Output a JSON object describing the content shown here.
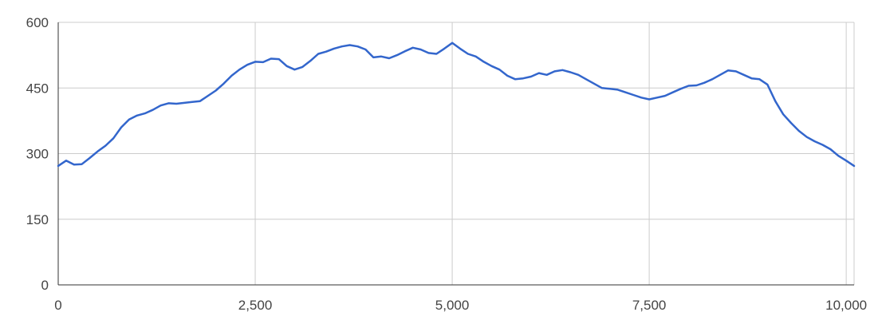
{
  "chart_data": {
    "type": "line",
    "title": "",
    "xlabel": "",
    "ylabel": "",
    "xlim": [
      0,
      10100
    ],
    "ylim": [
      0,
      600
    ],
    "x_ticks": [
      0,
      2500,
      5000,
      7500,
      10000
    ],
    "x_tick_labels": [
      "0",
      "2,500",
      "5,000",
      "7,500",
      "10,000"
    ],
    "y_ticks": [
      0,
      150,
      300,
      450,
      600
    ],
    "y_tick_labels": [
      "0",
      "150",
      "300",
      "450",
      "600"
    ],
    "grid": true,
    "legend": "none",
    "colors": {
      "line": "#3366cc",
      "grid": "#cccccc",
      "axis": "#333333",
      "text": "#444444"
    },
    "series": [
      {
        "x": [
          0,
          100,
          200,
          300,
          400,
          500,
          600,
          700,
          800,
          900,
          1000,
          1100,
          1200,
          1300,
          1400,
          1500,
          1600,
          1700,
          1800,
          1900,
          2000,
          2100,
          2200,
          2300,
          2400,
          2500,
          2600,
          2700,
          2800,
          2900,
          3000,
          3100,
          3200,
          3300,
          3400,
          3500,
          3600,
          3700,
          3800,
          3900,
          4000,
          4100,
          4200,
          4300,
          4400,
          4500,
          4600,
          4700,
          4800,
          4900,
          5000,
          5100,
          5200,
          5300,
          5400,
          5500,
          5600,
          5700,
          5800,
          5900,
          6000,
          6100,
          6200,
          6300,
          6400,
          6500,
          6600,
          6700,
          6800,
          6900,
          7000,
          7100,
          7200,
          7300,
          7400,
          7500,
          7600,
          7700,
          7800,
          7900,
          8000,
          8100,
          8200,
          8300,
          8400,
          8500,
          8600,
          8700,
          8800,
          8900,
          9000,
          9100,
          9200,
          9300,
          9400,
          9500,
          9600,
          9700,
          9800,
          9900,
          10000,
          10100
        ],
        "values": [
          272,
          284,
          275,
          276,
          290,
          305,
          318,
          335,
          360,
          378,
          387,
          392,
          400,
          410,
          415,
          414,
          416,
          418,
          420,
          432,
          444,
          460,
          478,
          492,
          503,
          510,
          509,
          517,
          516,
          500,
          492,
          498,
          512,
          528,
          533,
          540,
          545,
          548,
          545,
          538,
          520,
          522,
          518,
          525,
          534,
          542,
          538,
          530,
          528,
          540,
          553,
          540,
          528,
          522,
          510,
          500,
          492,
          478,
          470,
          472,
          476,
          484,
          480,
          488,
          491,
          486,
          480,
          470,
          460,
          450,
          448,
          446,
          440,
          434,
          428,
          424,
          428,
          432,
          440,
          448,
          455,
          456,
          462,
          470,
          480,
          490,
          488,
          480,
          472,
          470,
          458,
          420,
          390,
          370,
          352,
          338,
          328,
          320,
          310,
          295,
          284,
          272
        ]
      }
    ]
  }
}
